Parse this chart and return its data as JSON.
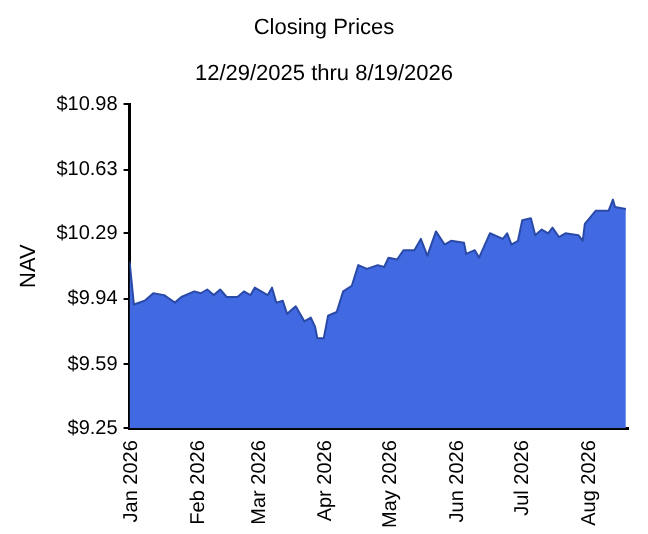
{
  "chart_data": {
    "type": "area",
    "title": "Closing Prices",
    "subtitle": "12/29/2025 thru 8/19/2026",
    "ylabel": "NAV",
    "x": [
      "2025-12-31",
      "2026-01-02",
      "2026-01-07",
      "2026-01-11",
      "2026-01-16",
      "2026-01-21",
      "2026-01-24",
      "2026-01-30",
      "2026-02-02",
      "2026-02-05",
      "2026-02-08",
      "2026-02-11",
      "2026-02-14",
      "2026-02-19",
      "2026-02-22",
      "2026-02-25",
      "2026-02-27",
      "2026-03-05",
      "2026-03-07",
      "2026-03-09",
      "2026-03-12",
      "2026-03-14",
      "2026-03-18",
      "2026-03-22",
      "2026-03-25",
      "2026-03-27",
      "2026-03-28",
      "2026-03-31",
      "2026-04-02",
      "2026-04-06",
      "2026-04-09",
      "2026-04-13",
      "2026-04-16",
      "2026-04-20",
      "2026-04-25",
      "2026-04-28",
      "2026-04-30",
      "2026-05-04",
      "2026-05-07",
      "2026-05-12",
      "2026-05-15",
      "2026-05-18",
      "2026-05-22",
      "2026-05-26",
      "2026-05-29",
      "2026-06-04",
      "2026-06-05",
      "2026-06-09",
      "2026-06-11",
      "2026-06-16",
      "2026-06-22",
      "2026-06-24",
      "2026-06-26",
      "2026-06-29",
      "2026-07-01",
      "2026-07-05",
      "2026-07-07",
      "2026-07-10",
      "2026-07-13",
      "2026-07-15",
      "2026-07-18",
      "2026-07-21",
      "2026-07-27",
      "2026-07-29",
      "2026-07-30",
      "2026-08-04",
      "2026-08-10",
      "2026-08-12",
      "2026-08-13",
      "2026-08-18"
    ],
    "series": [
      {
        "color": "#4169e1",
        "values": [
          10.14,
          9.91,
          9.93,
          9.97,
          9.96,
          9.92,
          9.95,
          9.98,
          9.97,
          9.99,
          9.96,
          9.99,
          9.95,
          9.95,
          9.98,
          9.96,
          10.0,
          9.96,
          10.0,
          9.92,
          9.93,
          9.86,
          9.9,
          9.82,
          9.84,
          9.79,
          9.73,
          9.73,
          9.85,
          9.87,
          9.98,
          10.01,
          10.12,
          10.1,
          10.12,
          10.11,
          10.16,
          10.15,
          10.2,
          10.2,
          10.26,
          10.17,
          10.3,
          10.23,
          10.25,
          10.24,
          10.18,
          10.2,
          10.16,
          10.29,
          10.26,
          10.29,
          10.23,
          10.25,
          10.36,
          10.37,
          10.28,
          10.31,
          10.29,
          10.32,
          10.27,
          10.29,
          10.28,
          10.25,
          10.34,
          10.41,
          10.41,
          10.47,
          10.43,
          10.42
        ]
      }
    ],
    "xlim": [
      "2025-12-31",
      "2026-08-19"
    ],
    "xticks": [
      {
        "value": "2026-01-01",
        "label": "Jan 2026"
      },
      {
        "value": "2026-02-01",
        "label": "Feb 2026"
      },
      {
        "value": "2026-03-01",
        "label": "Mar 2026"
      },
      {
        "value": "2026-04-01",
        "label": "Apr 2026"
      },
      {
        "value": "2026-05-01",
        "label": "May 2026"
      },
      {
        "value": "2026-06-01",
        "label": "Jun 2026"
      },
      {
        "value": "2026-07-01",
        "label": "Jul 2026"
      },
      {
        "value": "2026-08-01",
        "label": "Aug 2026"
      }
    ],
    "ylim": [
      9.25,
      10.98
    ],
    "yticks": [
      {
        "value": 9.25,
        "label": "$9.25"
      },
      {
        "value": 9.59,
        "label": "$9.59"
      },
      {
        "value": 9.94,
        "label": "$9.94"
      },
      {
        "value": 10.29,
        "label": "$10.29"
      },
      {
        "value": 10.63,
        "label": "$10.63"
      },
      {
        "value": 10.98,
        "label": "$10.98"
      }
    ],
    "grid": false,
    "legend": false
  }
}
